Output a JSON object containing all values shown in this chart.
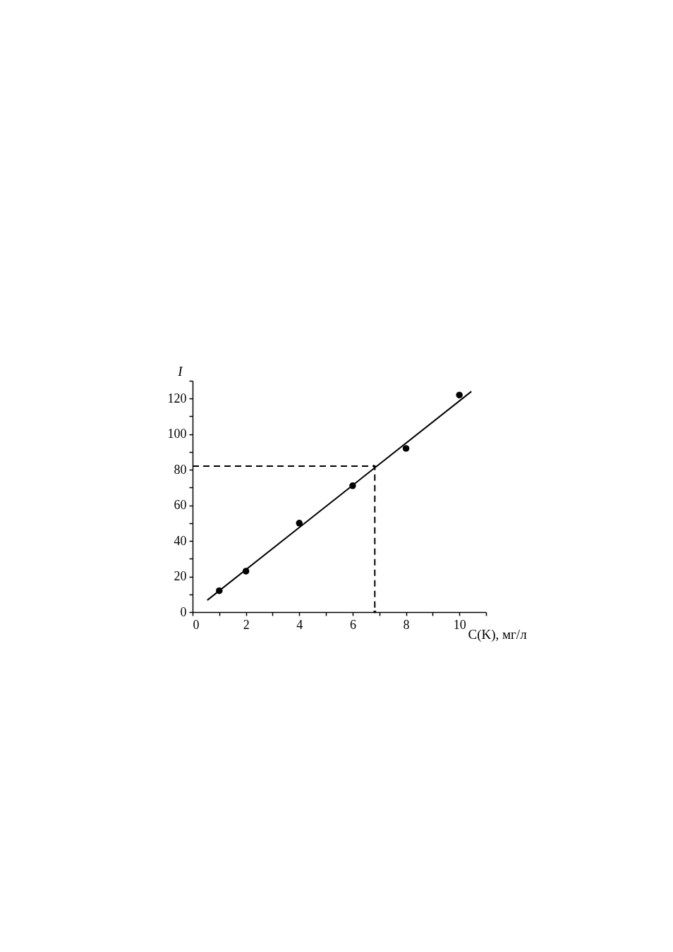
{
  "chart_data": {
    "type": "scatter",
    "xlabel": "C(K), мг/л",
    "ylabel": "I",
    "xlim": [
      0,
      11
    ],
    "ylim": [
      0,
      130
    ],
    "xticks": [
      0,
      {
        "value": 1,
        "label": null
      },
      2,
      {
        "value": 3,
        "label": null
      },
      4,
      {
        "value": 5,
        "label": null
      },
      6,
      {
        "value": 7,
        "label": null
      },
      8,
      {
        "value": 9,
        "label": null
      },
      10,
      {
        "value": 11,
        "label": null
      }
    ],
    "yticks": [
      0,
      {
        "value": 10,
        "label": null
      },
      20,
      {
        "value": 30,
        "label": null
      },
      40,
      {
        "value": 50,
        "label": null
      },
      60,
      {
        "value": 70,
        "label": null
      },
      80,
      {
        "value": 90,
        "label": null
      },
      100,
      {
        "value": 110,
        "label": null
      },
      120,
      {
        "value": 130,
        "label": null
      }
    ],
    "grid": false,
    "series": [
      {
        "color": "#000000",
        "marker": "circle",
        "x": [
          1,
          2,
          4,
          6,
          8,
          10
        ],
        "values": [
          12,
          23,
          50,
          71,
          92,
          122
        ]
      },
      {
        "type": "line",
        "color": "#000000",
        "line_style": "solid",
        "x": [
          0.55,
          10.45
        ],
        "values": [
          6.7,
          124
        ]
      },
      {
        "type": "line",
        "color": "#000000",
        "line_style": "dashed",
        "x": [
          0,
          6.83,
          6.83
        ],
        "values": [
          82,
          82,
          0
        ]
      }
    ]
  }
}
